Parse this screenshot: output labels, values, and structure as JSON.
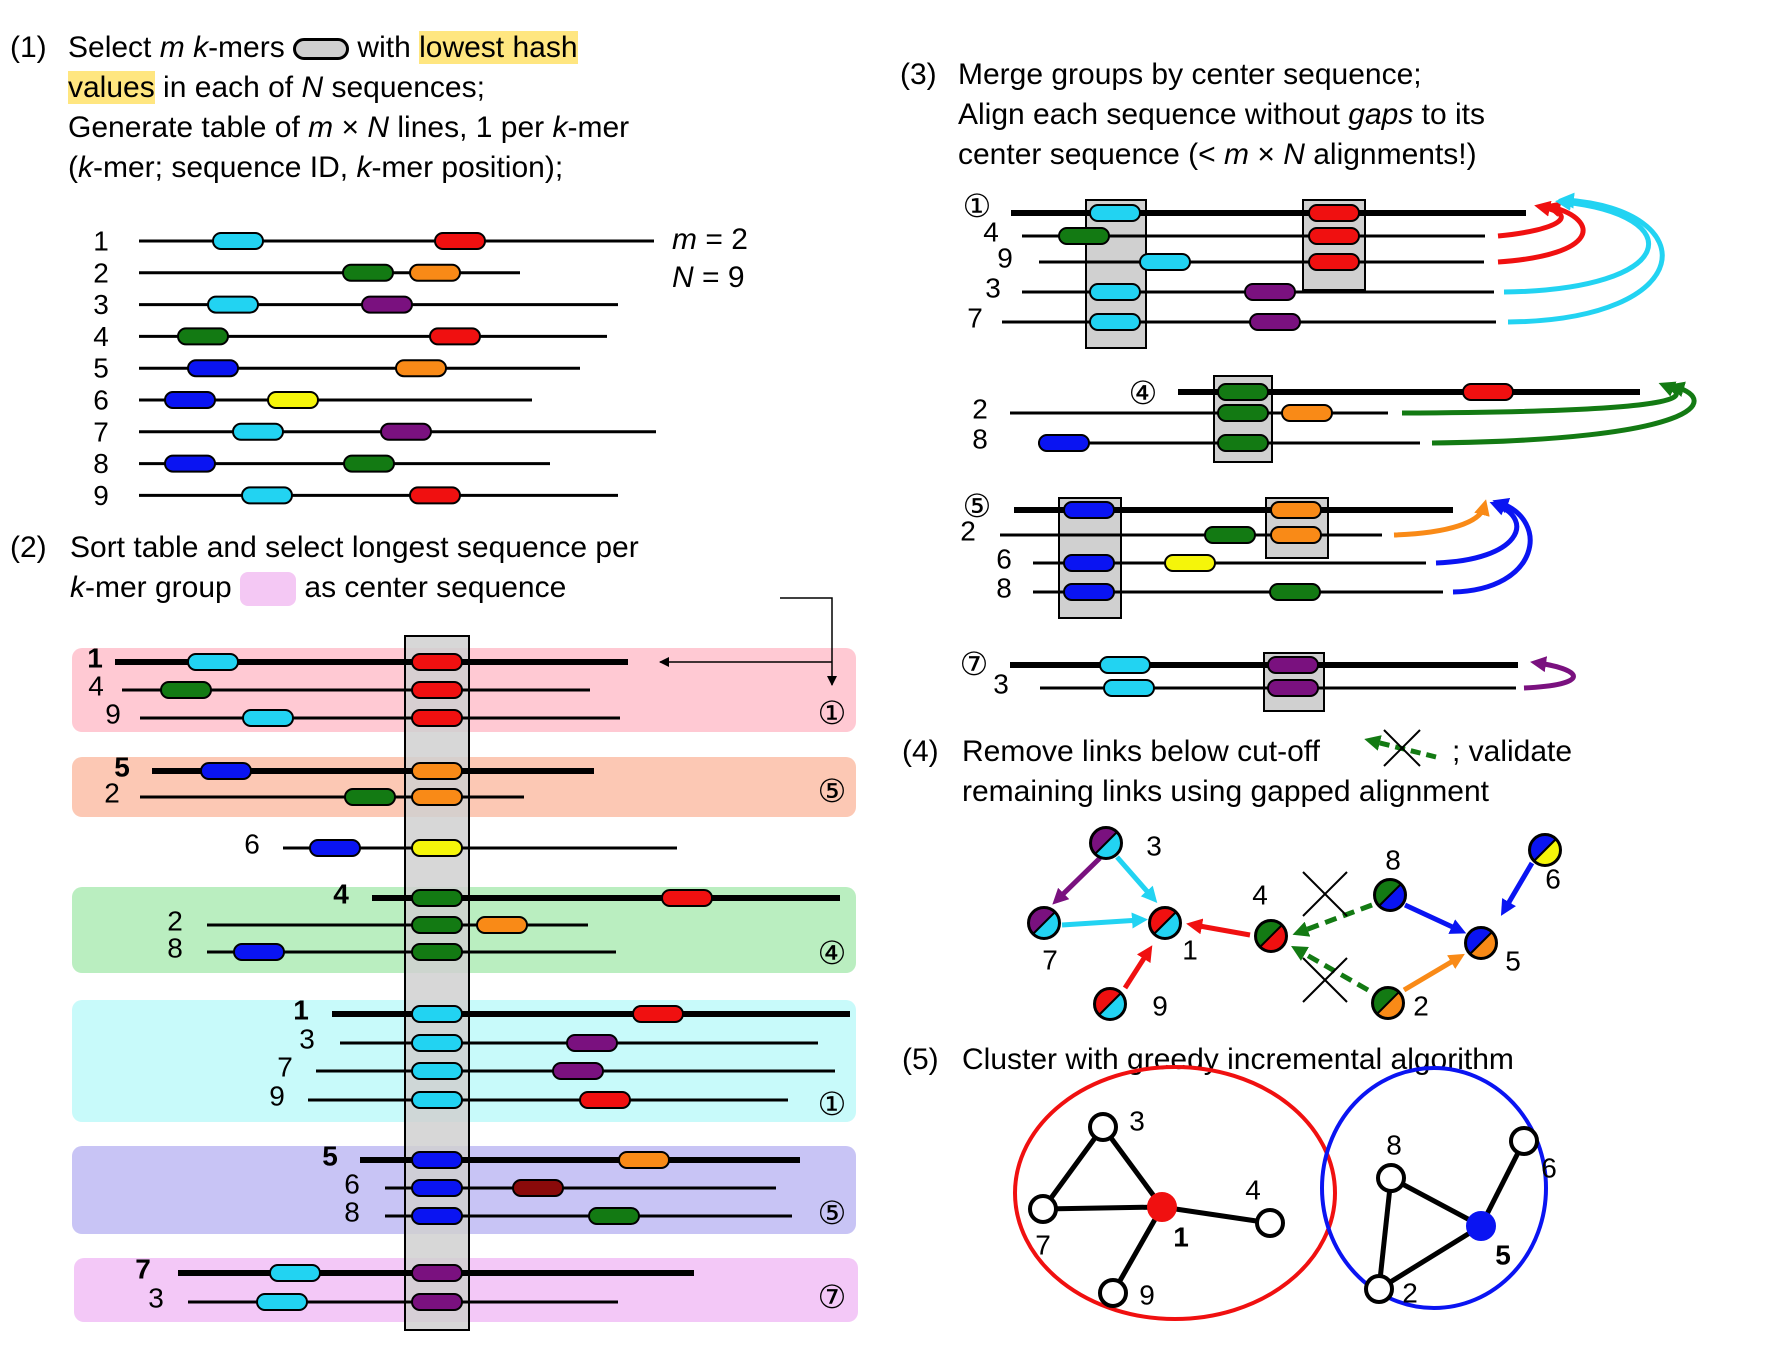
{
  "colors": {
    "cyan": "#22d3f2",
    "red": "#f01010",
    "green": "#137a13",
    "orange": "#f98a17",
    "purple": "#7a117f",
    "blue": "#0a14f2",
    "yellow": "#f5f50a",
    "darkred": "#8a0a0a",
    "grey": "#cccccc",
    "group_bg": [
      "#ffc9d3",
      "#fcc8b4",
      "#baeec0",
      "#c8fafa",
      "#c8c4f5",
      "#f3c8f7"
    ]
  },
  "step1": {
    "num": "(1)",
    "line1": [
      "Select ",
      "m",
      " ",
      "k",
      "-mers",
      " with ",
      "lowest hash"
    ],
    "line2": [
      "values",
      " in each of ",
      "N",
      " sequences;"
    ],
    "line3": [
      "Generate table of ",
      "m",
      " × ",
      "N",
      " lines, 1 per ",
      "k",
      "-mer"
    ],
    "line4": [
      "(",
      "k",
      "-mer; sequence ID, ",
      "k",
      "-mer position);"
    ],
    "params": [
      [
        "m",
        " = 2"
      ],
      [
        "N",
        " = 9"
      ]
    ],
    "rows": [
      {
        "id": "1",
        "kmers": [
          "cyan",
          "red"
        ]
      },
      {
        "id": "2",
        "kmers": [
          "green",
          "orange"
        ]
      },
      {
        "id": "3",
        "kmers": [
          "cyan",
          "purple"
        ]
      },
      {
        "id": "4",
        "kmers": [
          "green",
          "red"
        ]
      },
      {
        "id": "5",
        "kmers": [
          "blue",
          "orange"
        ]
      },
      {
        "id": "6",
        "kmers": [
          "blue",
          "yellow"
        ]
      },
      {
        "id": "7",
        "kmers": [
          "cyan",
          "purple"
        ]
      },
      {
        "id": "8",
        "kmers": [
          "blue",
          "green"
        ]
      },
      {
        "id": "9",
        "kmers": [
          "cyan",
          "red"
        ]
      }
    ]
  },
  "step2": {
    "num": "(2)",
    "line1": "Sort table and select longest sequence per",
    "line2": [
      "k",
      "-mer group",
      "as center sequence"
    ],
    "groups": [
      {
        "center": "1",
        "rows": [
          "1",
          "4",
          "9"
        ],
        "kmer": "red"
      },
      {
        "center": "5",
        "rows": [
          "5",
          "2"
        ],
        "kmer": "orange"
      },
      {
        "center": "",
        "rows": [
          "6"
        ],
        "kmer": "yellow"
      },
      {
        "center": "4",
        "rows": [
          "4",
          "2",
          "8"
        ],
        "kmer": "green"
      },
      {
        "center": "1",
        "rows": [
          "1",
          "3",
          "7",
          "9"
        ],
        "kmer": "cyan"
      },
      {
        "center": "5",
        "rows": [
          "5",
          "6",
          "8"
        ],
        "kmer": "blue"
      },
      {
        "center": "7",
        "rows": [
          "7",
          "3"
        ],
        "kmer": "purple"
      }
    ],
    "circled": [
      "①",
      "⑤",
      "④",
      "①",
      "⑤",
      "⑦"
    ]
  },
  "step3": {
    "num": "(3)",
    "line1": "Merge groups by center sequence;",
    "line2": [
      "Align each sequence without ",
      "gaps",
      " to its"
    ],
    "line3": [
      "center sequence (< ",
      "m",
      " × ",
      "N",
      " alignments!)"
    ],
    "groups": [
      {
        "label": "①",
        "rows": [
          "4",
          "9",
          "3",
          "7"
        ]
      },
      {
        "label": "④",
        "rows": [
          "2",
          "8"
        ]
      },
      {
        "label": "⑤",
        "rows": [
          "2",
          "6",
          "8"
        ]
      },
      {
        "label": "⑦",
        "rows": [
          "3"
        ]
      }
    ]
  },
  "step4": {
    "num": "(4)",
    "line1a": "Remove links below cut-off",
    "line1b": "; validate",
    "line2": "remaining links using gapped alignment",
    "nodes": [
      "3",
      "7",
      "1",
      "9",
      "4",
      "8",
      "2",
      "5",
      "6"
    ]
  },
  "step5": {
    "num": "(5)",
    "line1": "Cluster with greedy incremental algorithm",
    "cluster1": {
      "center": "1",
      "members": [
        "3",
        "7",
        "4",
        "9"
      ]
    },
    "cluster2": {
      "center": "5",
      "members": [
        "8",
        "6",
        "2"
      ]
    }
  }
}
